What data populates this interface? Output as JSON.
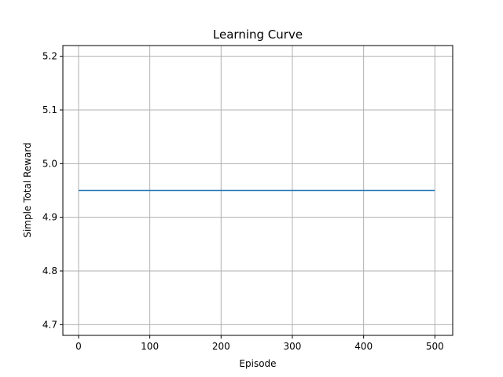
{
  "chart_data": {
    "type": "line",
    "title": "Learning Curve",
    "xlabel": "Episode",
    "ylabel": "Simple Total Reward",
    "xlim": [
      -22,
      525
    ],
    "ylim": [
      4.68,
      5.22
    ],
    "xticks": [
      0,
      100,
      200,
      300,
      400,
      500
    ],
    "yticks": [
      4.7,
      4.8,
      4.9,
      5.0,
      5.1,
      5.2
    ],
    "xtick_labels": [
      "0",
      "100",
      "200",
      "300",
      "400",
      "500"
    ],
    "ytick_labels": [
      "4.7",
      "4.8",
      "4.9",
      "5.0",
      "5.1",
      "5.2"
    ],
    "grid": true,
    "series": [
      {
        "color": "#1f77b4",
        "x": [
          0,
          500
        ],
        "y": [
          4.95,
          4.95
        ]
      }
    ]
  }
}
